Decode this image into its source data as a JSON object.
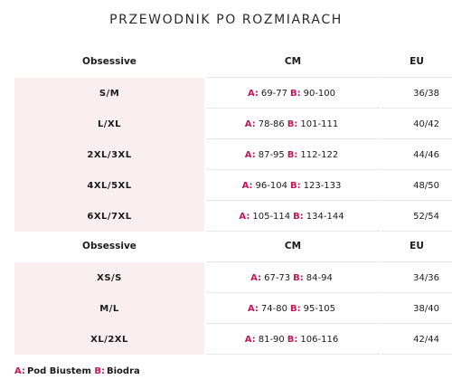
{
  "title": "PRZEWODNIK PO ROZMIARACH",
  "tables": [
    {
      "headers": [
        "Obsessive",
        "CM",
        "EU"
      ],
      "rows": [
        {
          "size": "S/M",
          "a_label": "A:",
          "a_val": "69-77",
          "b_label": "B:",
          "b_val": "90-100",
          "eu": "36/38"
        },
        {
          "size": "L/XL",
          "a_label": "A:",
          "a_val": "78-86",
          "b_label": "B:",
          "b_val": "101-111",
          "eu": "40/42"
        },
        {
          "size": "2XL/3XL",
          "a_label": "A:",
          "a_val": "87-95",
          "b_label": "B:",
          "b_val": "112-122",
          "eu": "44/46"
        },
        {
          "size": "4XL/5XL",
          "a_label": "A:",
          "a_val": "96-104",
          "b_label": "B:",
          "b_val": "123-133",
          "eu": "48/50"
        },
        {
          "size": "6XL/7XL",
          "a_label": "A:",
          "a_val": "105-114",
          "b_label": "B:",
          "b_val": "134-144",
          "eu": "52/54"
        }
      ]
    },
    {
      "headers": [
        "Obsessive",
        "CM",
        "EU"
      ],
      "rows": [
        {
          "size": "XS/S",
          "a_label": "A:",
          "a_val": "67-73",
          "b_label": "B:",
          "b_val": "84-94",
          "eu": "34/36"
        },
        {
          "size": "M/L",
          "a_label": "A:",
          "a_val": "74-80",
          "b_label": "B:",
          "b_val": "95-105",
          "eu": "38/40"
        },
        {
          "size": "XL/2XL",
          "a_label": "A:",
          "a_val": "81-90",
          "b_label": "B:",
          "b_val": "106-116",
          "eu": "42/44"
        }
      ]
    }
  ],
  "legend": {
    "a_label": "A:",
    "a_text": "Pod Biustem",
    "b_label": "B:",
    "b_text": "Biodra"
  },
  "colors": {
    "accent": "#c2185b",
    "row_bg": "#f9eff0"
  }
}
